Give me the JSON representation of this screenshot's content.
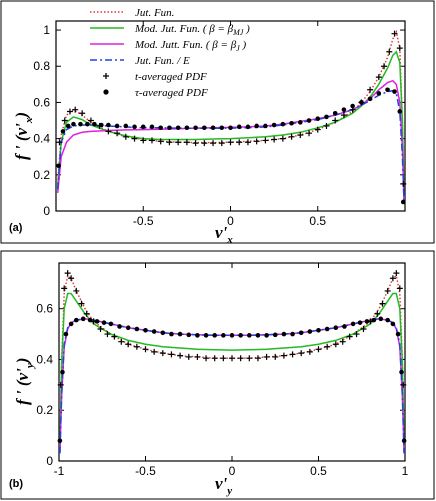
{
  "chart_data": [
    {
      "panel": "(a)",
      "type": "line",
      "xlabel": "v'",
      "xlabel_sub": "x",
      "ylabel": "f ' (v'",
      "ylabel_sub": "x",
      "ylabel_close": ")",
      "xlim": [
        -1,
        1
      ],
      "ylim": [
        0,
        1.05
      ],
      "xticks": [
        "-0.5",
        "0",
        "0.5"
      ],
      "yticks": [
        "0",
        "0.2",
        "0.4",
        "0.6",
        "0.8",
        "1"
      ],
      "grid": false,
      "legend_position": "top-left",
      "legend": [
        {
          "label": "Jut. Fun.",
          "color": "#e03030",
          "style": "dotted"
        },
        {
          "label": "Mod. Jut. Fun. ( β = β",
          "sub": "MJ",
          "tail": " )",
          "color": "#22bb22",
          "style": "solid"
        },
        {
          "label": "Mod. Jutt. Fun. ( β = β",
          "sub": "J",
          "tail": " )",
          "color": "#dd22dd",
          "style": "solid"
        },
        {
          "label": "Jut. Fun. / E",
          "color": "#2244dd",
          "style": "dashdot"
        },
        {
          "label": "t-averaged PDF",
          "color": "#000000",
          "style": "plus"
        },
        {
          "label": "τ-averaged PDF",
          "color": "#000000",
          "style": "dot"
        }
      ],
      "series": [
        {
          "key": "jut",
          "color": "#e03030",
          "style": "dotted",
          "x": [
            -0.99,
            -0.97,
            -0.94,
            -0.9,
            -0.85,
            -0.8,
            -0.7,
            -0.6,
            -0.5,
            -0.4,
            -0.3,
            -0.2,
            -0.1,
            0,
            0.1,
            0.2,
            0.3,
            0.4,
            0.5,
            0.6,
            0.7,
            0.75,
            0.8,
            0.85,
            0.9,
            0.93,
            0.95,
            0.97,
            0.985,
            0.995
          ],
          "y": [
            0.15,
            0.42,
            0.53,
            0.56,
            0.53,
            0.49,
            0.44,
            0.41,
            0.395,
            0.385,
            0.38,
            0.378,
            0.378,
            0.38,
            0.385,
            0.39,
            0.4,
            0.42,
            0.45,
            0.49,
            0.55,
            0.6,
            0.66,
            0.74,
            0.85,
            0.95,
            0.99,
            0.9,
            0.5,
            0.05
          ]
        },
        {
          "key": "modjut_mj",
          "color": "#22bb22",
          "style": "solid",
          "x": [
            -0.99,
            -0.97,
            -0.94,
            -0.9,
            -0.85,
            -0.8,
            -0.7,
            -0.6,
            -0.5,
            -0.4,
            -0.3,
            -0.2,
            -0.1,
            0,
            0.1,
            0.2,
            0.3,
            0.4,
            0.5,
            0.6,
            0.7,
            0.75,
            0.8,
            0.85,
            0.9,
            0.93,
            0.95,
            0.97,
            0.985,
            0.995
          ],
          "y": [
            0.13,
            0.38,
            0.49,
            0.52,
            0.505,
            0.475,
            0.44,
            0.415,
            0.4,
            0.395,
            0.395,
            0.395,
            0.398,
            0.4,
            0.405,
            0.41,
            0.42,
            0.435,
            0.46,
            0.49,
            0.54,
            0.58,
            0.63,
            0.7,
            0.79,
            0.86,
            0.88,
            0.82,
            0.5,
            0.05
          ]
        },
        {
          "key": "modjutt_j",
          "color": "#dd22dd",
          "style": "solid",
          "x": [
            -0.99,
            -0.97,
            -0.94,
            -0.9,
            -0.85,
            -0.8,
            -0.7,
            -0.6,
            -0.5,
            -0.4,
            -0.3,
            -0.2,
            -0.1,
            0,
            0.1,
            0.2,
            0.3,
            0.4,
            0.5,
            0.6,
            0.7,
            0.75,
            0.8,
            0.85,
            0.9,
            0.93,
            0.95,
            0.97,
            0.985,
            0.995
          ],
          "y": [
            0.1,
            0.3,
            0.38,
            0.42,
            0.435,
            0.44,
            0.445,
            0.448,
            0.45,
            0.452,
            0.455,
            0.458,
            0.46,
            0.462,
            0.465,
            0.47,
            0.48,
            0.495,
            0.51,
            0.53,
            0.56,
            0.585,
            0.62,
            0.67,
            0.71,
            0.72,
            0.7,
            0.6,
            0.35,
            0.04
          ]
        },
        {
          "key": "jut_e",
          "color": "#2244dd",
          "style": "dashdot",
          "x": [
            -0.99,
            -0.97,
            -0.94,
            -0.9,
            -0.85,
            -0.8,
            -0.7,
            -0.6,
            -0.5,
            -0.4,
            -0.3,
            -0.2,
            -0.1,
            0,
            0.1,
            0.2,
            0.3,
            0.4,
            0.5,
            0.6,
            0.7,
            0.75,
            0.8,
            0.85,
            0.9,
            0.93,
            0.95,
            0.97,
            0.985,
            0.995
          ],
          "y": [
            0.12,
            0.38,
            0.45,
            0.47,
            0.475,
            0.475,
            0.47,
            0.465,
            0.46,
            0.46,
            0.458,
            0.457,
            0.457,
            0.458,
            0.46,
            0.465,
            0.475,
            0.49,
            0.505,
            0.53,
            0.56,
            0.585,
            0.61,
            0.64,
            0.66,
            0.665,
            0.65,
            0.55,
            0.3,
            0.04
          ]
        }
      ],
      "markers_plus": {
        "x": [
          -0.98,
          -0.95,
          -0.92,
          -0.89,
          -0.85,
          -0.8,
          -0.75,
          -0.7,
          -0.65,
          -0.6,
          -0.55,
          -0.5,
          -0.45,
          -0.4,
          -0.35,
          -0.3,
          -0.25,
          -0.2,
          -0.15,
          -0.1,
          -0.05,
          0,
          0.05,
          0.1,
          0.15,
          0.2,
          0.25,
          0.3,
          0.35,
          0.4,
          0.45,
          0.5,
          0.55,
          0.6,
          0.65,
          0.7,
          0.75,
          0.8,
          0.85,
          0.88,
          0.91,
          0.94,
          0.97,
          0.99
        ],
        "y": [
          0.38,
          0.5,
          0.55,
          0.56,
          0.54,
          0.5,
          0.47,
          0.44,
          0.43,
          0.41,
          0.4,
          0.39,
          0.39,
          0.385,
          0.38,
          0.38,
          0.38,
          0.375,
          0.375,
          0.375,
          0.375,
          0.38,
          0.38,
          0.38,
          0.385,
          0.39,
          0.395,
          0.4,
          0.41,
          0.42,
          0.43,
          0.45,
          0.47,
          0.5,
          0.53,
          0.56,
          0.6,
          0.67,
          0.74,
          0.8,
          0.88,
          0.98,
          0.9,
          0.15
        ]
      },
      "markers_dot": {
        "x": [
          -0.985,
          -0.96,
          -0.93,
          -0.9,
          -0.86,
          -0.82,
          -0.78,
          -0.74,
          -0.7,
          -0.65,
          -0.6,
          -0.55,
          -0.5,
          -0.45,
          -0.4,
          -0.35,
          -0.3,
          -0.25,
          -0.2,
          -0.15,
          -0.1,
          -0.05,
          0,
          0.05,
          0.1,
          0.15,
          0.2,
          0.25,
          0.3,
          0.35,
          0.4,
          0.45,
          0.5,
          0.55,
          0.6,
          0.65,
          0.7,
          0.75,
          0.8,
          0.85,
          0.9,
          0.94,
          0.97,
          0.99
        ],
        "y": [
          0.25,
          0.44,
          0.47,
          0.48,
          0.48,
          0.48,
          0.48,
          0.475,
          0.475,
          0.47,
          0.47,
          0.465,
          0.465,
          0.465,
          0.46,
          0.46,
          0.46,
          0.46,
          0.46,
          0.46,
          0.46,
          0.46,
          0.46,
          0.465,
          0.465,
          0.47,
          0.47,
          0.475,
          0.48,
          0.485,
          0.49,
          0.5,
          0.51,
          0.52,
          0.54,
          0.56,
          0.58,
          0.6,
          0.62,
          0.65,
          0.67,
          0.66,
          0.55,
          0.05
        ]
      }
    },
    {
      "panel": "(b)",
      "type": "line",
      "xlabel": "v'",
      "xlabel_sub": "y",
      "ylabel": "f ' (v'",
      "ylabel_sub": "y",
      "ylabel_close": ")",
      "xlim": [
        -1,
        1
      ],
      "ylim": [
        0,
        0.78
      ],
      "xticks": [
        "-1",
        "-0.5",
        "0",
        "0.5",
        "1"
      ],
      "yticks": [
        "0",
        "0.2",
        "0.4",
        "0.6"
      ],
      "grid": false,
      "series": [
        {
          "key": "jut",
          "color": "#e03030",
          "style": "dotted",
          "x": [
            -0.995,
            -0.985,
            -0.97,
            -0.95,
            -0.93,
            -0.9,
            -0.85,
            -0.8,
            -0.7,
            -0.6,
            -0.5,
            -0.4,
            -0.3,
            -0.2,
            -0.1,
            0,
            0.1,
            0.2,
            0.3,
            0.4,
            0.5,
            0.6,
            0.7,
            0.8,
            0.85,
            0.9,
            0.93,
            0.95,
            0.97,
            0.985,
            0.995
          ],
          "y": [
            0.05,
            0.4,
            0.66,
            0.73,
            0.72,
            0.67,
            0.6,
            0.55,
            0.5,
            0.46,
            0.44,
            0.425,
            0.415,
            0.41,
            0.405,
            0.405,
            0.405,
            0.41,
            0.415,
            0.425,
            0.44,
            0.46,
            0.5,
            0.55,
            0.6,
            0.67,
            0.72,
            0.73,
            0.66,
            0.4,
            0.05
          ]
        },
        {
          "key": "modjut_mj",
          "color": "#22bb22",
          "style": "solid",
          "x": [
            -0.995,
            -0.985,
            -0.97,
            -0.95,
            -0.93,
            -0.9,
            -0.85,
            -0.8,
            -0.7,
            -0.6,
            -0.5,
            -0.4,
            -0.3,
            -0.2,
            -0.1,
            0,
            0.1,
            0.2,
            0.3,
            0.4,
            0.5,
            0.6,
            0.7,
            0.8,
            0.85,
            0.9,
            0.93,
            0.95,
            0.97,
            0.985,
            0.995
          ],
          "y": [
            0.05,
            0.38,
            0.6,
            0.66,
            0.66,
            0.63,
            0.58,
            0.54,
            0.5,
            0.475,
            0.46,
            0.45,
            0.445,
            0.44,
            0.438,
            0.437,
            0.438,
            0.44,
            0.445,
            0.45,
            0.46,
            0.475,
            0.5,
            0.54,
            0.58,
            0.63,
            0.66,
            0.66,
            0.6,
            0.38,
            0.05
          ]
        },
        {
          "key": "modjutt_j",
          "color": "#dd22dd",
          "style": "solid",
          "x": [
            -0.995,
            -0.985,
            -0.97,
            -0.95,
            -0.93,
            -0.9,
            -0.85,
            -0.8,
            -0.7,
            -0.6,
            -0.5,
            -0.4,
            -0.3,
            -0.2,
            -0.1,
            0,
            0.1,
            0.2,
            0.3,
            0.4,
            0.5,
            0.6,
            0.7,
            0.8,
            0.85,
            0.9,
            0.93,
            0.95,
            0.97,
            0.985,
            0.995
          ],
          "y": [
            0.03,
            0.25,
            0.45,
            0.52,
            0.545,
            0.555,
            0.56,
            0.555,
            0.54,
            0.525,
            0.515,
            0.505,
            0.5,
            0.497,
            0.495,
            0.495,
            0.495,
            0.497,
            0.5,
            0.505,
            0.515,
            0.525,
            0.54,
            0.555,
            0.56,
            0.555,
            0.545,
            0.52,
            0.45,
            0.25,
            0.03
          ]
        },
        {
          "key": "jut_e",
          "color": "#2244dd",
          "style": "dashdot",
          "x": [
            -0.995,
            -0.985,
            -0.97,
            -0.95,
            -0.93,
            -0.9,
            -0.85,
            -0.8,
            -0.7,
            -0.6,
            -0.5,
            -0.4,
            -0.3,
            -0.2,
            -0.1,
            0,
            0.1,
            0.2,
            0.3,
            0.4,
            0.5,
            0.6,
            0.7,
            0.8,
            0.85,
            0.9,
            0.93,
            0.95,
            0.97,
            0.985,
            0.995
          ],
          "y": [
            0.03,
            0.26,
            0.46,
            0.525,
            0.545,
            0.555,
            0.56,
            0.555,
            0.54,
            0.525,
            0.515,
            0.505,
            0.5,
            0.497,
            0.495,
            0.495,
            0.495,
            0.497,
            0.5,
            0.505,
            0.515,
            0.525,
            0.54,
            0.555,
            0.56,
            0.555,
            0.545,
            0.525,
            0.46,
            0.26,
            0.03
          ]
        }
      ],
      "markers_plus": {
        "x": [
          -0.99,
          -0.97,
          -0.95,
          -0.93,
          -0.9,
          -0.87,
          -0.84,
          -0.8,
          -0.76,
          -0.72,
          -0.68,
          -0.64,
          -0.6,
          -0.55,
          -0.5,
          -0.45,
          -0.4,
          -0.35,
          -0.3,
          -0.25,
          -0.2,
          -0.15,
          -0.1,
          -0.05,
          0,
          0.05,
          0.1,
          0.15,
          0.2,
          0.25,
          0.3,
          0.35,
          0.4,
          0.45,
          0.5,
          0.55,
          0.6,
          0.64,
          0.68,
          0.72,
          0.76,
          0.8,
          0.84,
          0.87,
          0.9,
          0.93,
          0.95,
          0.97,
          0.99
        ],
        "y": [
          0.3,
          0.68,
          0.74,
          0.72,
          0.67,
          0.62,
          0.58,
          0.55,
          0.52,
          0.5,
          0.49,
          0.47,
          0.46,
          0.45,
          0.44,
          0.43,
          0.425,
          0.42,
          0.415,
          0.41,
          0.41,
          0.405,
          0.405,
          0.405,
          0.405,
          0.405,
          0.405,
          0.405,
          0.41,
          0.41,
          0.415,
          0.42,
          0.425,
          0.43,
          0.44,
          0.45,
          0.46,
          0.47,
          0.49,
          0.5,
          0.52,
          0.55,
          0.58,
          0.62,
          0.67,
          0.72,
          0.74,
          0.68,
          0.3
        ]
      },
      "markers_dot": {
        "x": [
          -0.995,
          -0.98,
          -0.96,
          -0.93,
          -0.9,
          -0.86,
          -0.82,
          -0.78,
          -0.74,
          -0.7,
          -0.65,
          -0.6,
          -0.55,
          -0.5,
          -0.45,
          -0.4,
          -0.35,
          -0.3,
          -0.25,
          -0.2,
          -0.15,
          -0.1,
          -0.05,
          0,
          0.05,
          0.1,
          0.15,
          0.2,
          0.25,
          0.3,
          0.35,
          0.4,
          0.45,
          0.5,
          0.55,
          0.6,
          0.65,
          0.7,
          0.74,
          0.78,
          0.82,
          0.86,
          0.9,
          0.93,
          0.96,
          0.98,
          0.995
        ],
        "y": [
          0.08,
          0.35,
          0.5,
          0.54,
          0.555,
          0.56,
          0.555,
          0.55,
          0.545,
          0.54,
          0.53,
          0.525,
          0.52,
          0.515,
          0.51,
          0.505,
          0.5,
          0.5,
          0.497,
          0.495,
          0.495,
          0.495,
          0.495,
          0.495,
          0.495,
          0.495,
          0.495,
          0.495,
          0.497,
          0.5,
          0.5,
          0.505,
          0.51,
          0.515,
          0.52,
          0.525,
          0.53,
          0.54,
          0.545,
          0.55,
          0.555,
          0.56,
          0.555,
          0.54,
          0.5,
          0.35,
          0.08
        ]
      }
    }
  ]
}
